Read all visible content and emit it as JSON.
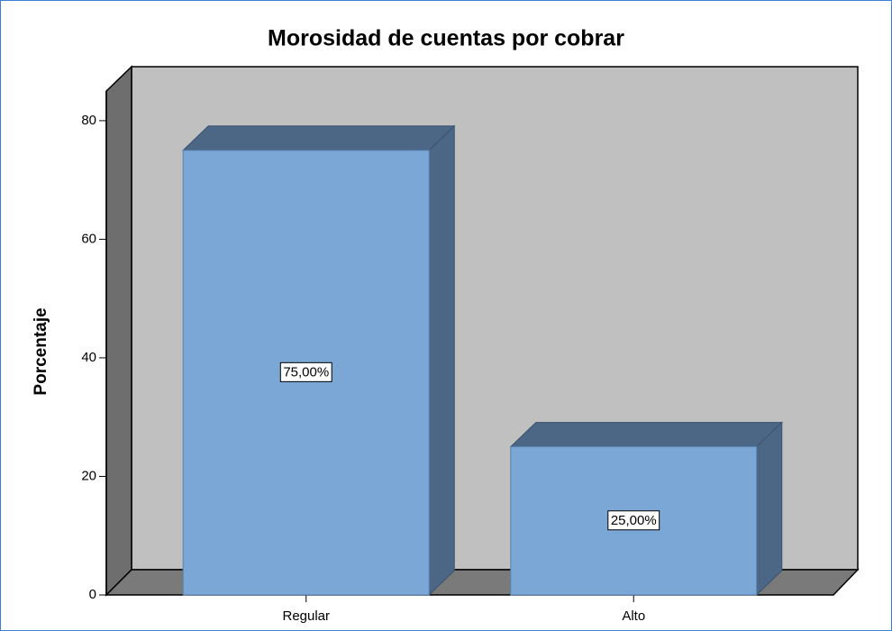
{
  "chart_data": {
    "type": "bar3d",
    "title": "Morosidad de cuentas por cobrar",
    "y_label": "Porcentaje",
    "categories": [
      "Regular",
      "Alto"
    ],
    "values": [
      75,
      25
    ],
    "value_labels": [
      "75,00%",
      "25,00%"
    ],
    "color": "#7ba7d6",
    "side_color": "#4b6785",
    "ylim": [
      0,
      85
    ],
    "yticks": [
      0,
      20,
      40,
      60,
      80
    ],
    "grid": false
  }
}
